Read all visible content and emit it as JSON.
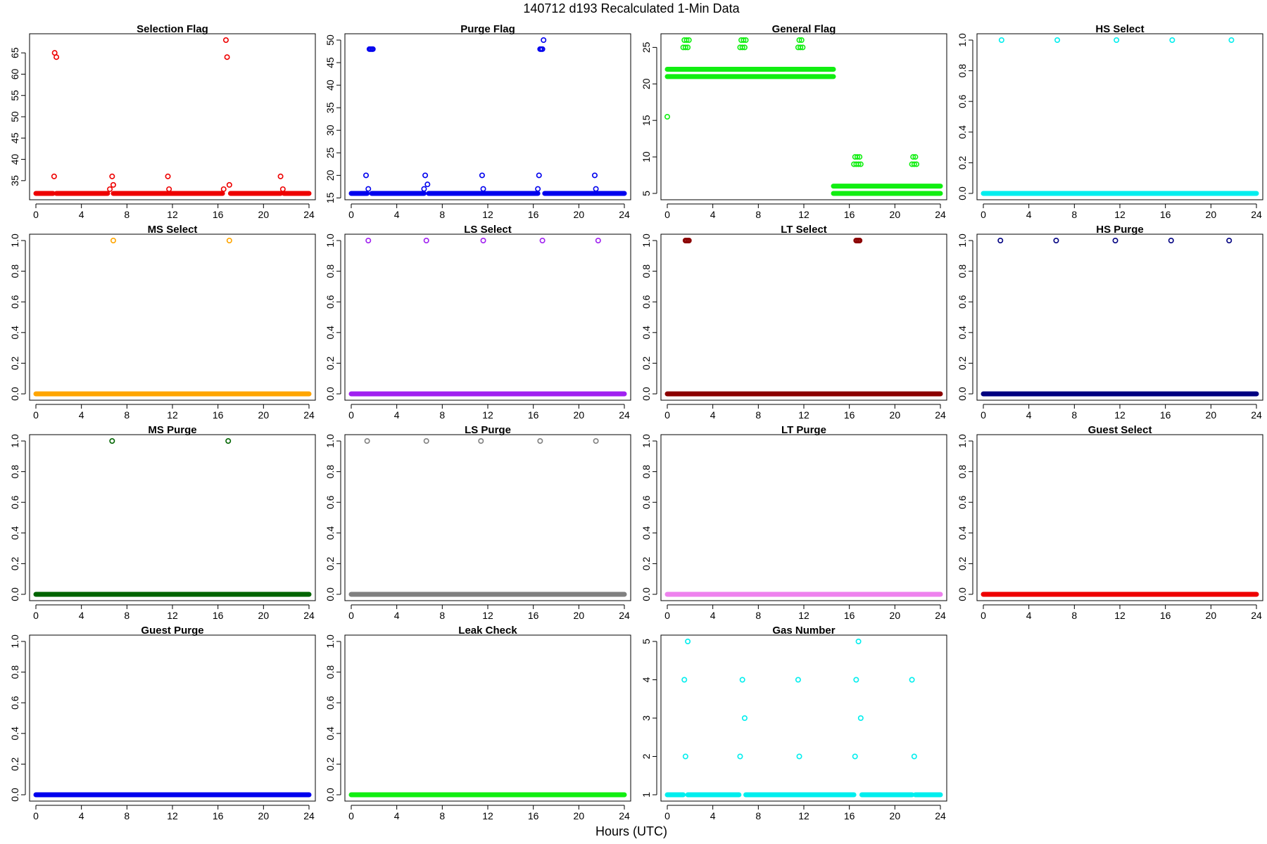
{
  "figure": {
    "title": "140712   d193   Recalculated 1-Min Data",
    "xlabel": "Hours (UTC)"
  },
  "chart_data": [
    {
      "type": "scatter",
      "title": "Selection Flag",
      "color": "#ee0000",
      "xlim": [
        0,
        24
      ],
      "xticks": [
        0,
        4,
        8,
        12,
        16,
        20,
        24
      ],
      "ylim": [
        32,
        68
      ],
      "yticks": [
        35,
        40,
        45,
        50,
        55,
        60,
        65
      ],
      "baseline": {
        "y": 32,
        "segments": [
          [
            0,
            1.5
          ],
          [
            1.8,
            6.3
          ],
          [
            6.8,
            16.4
          ],
          [
            17.1,
            21.5
          ],
          [
            21.8,
            24
          ]
        ]
      },
      "points": [
        [
          1.6,
          36
        ],
        [
          1.65,
          65
        ],
        [
          1.8,
          64
        ],
        [
          6.5,
          33
        ],
        [
          6.7,
          36
        ],
        [
          6.8,
          34
        ],
        [
          11.6,
          36
        ],
        [
          11.7,
          33
        ],
        [
          16.5,
          33
        ],
        [
          16.7,
          68
        ],
        [
          16.8,
          64
        ],
        [
          17.0,
          34
        ],
        [
          21.5,
          36
        ],
        [
          21.7,
          33
        ]
      ]
    },
    {
      "type": "scatter",
      "title": "Purge Flag",
      "color": "#0000ee",
      "xlim": [
        0,
        24
      ],
      "xticks": [
        0,
        4,
        8,
        12,
        16,
        20,
        24
      ],
      "ylim": [
        16,
        50
      ],
      "yticks": [
        15,
        20,
        25,
        30,
        35,
        40,
        45,
        50
      ],
      "baseline": {
        "y": 16,
        "segments": [
          [
            0,
            1.4
          ],
          [
            1.8,
            6.4
          ],
          [
            6.8,
            16.4
          ],
          [
            17.0,
            24
          ]
        ]
      },
      "points": [
        [
          1.3,
          20
        ],
        [
          1.5,
          17
        ],
        [
          1.6,
          48
        ],
        [
          1.7,
          48
        ],
        [
          1.8,
          48
        ],
        [
          1.9,
          48
        ],
        [
          6.4,
          17
        ],
        [
          6.5,
          20
        ],
        [
          6.7,
          18
        ],
        [
          11.5,
          20
        ],
        [
          11.6,
          17
        ],
        [
          16.4,
          17
        ],
        [
          16.5,
          20
        ],
        [
          16.6,
          48
        ],
        [
          16.7,
          48
        ],
        [
          16.8,
          48
        ],
        [
          16.9,
          50
        ],
        [
          21.4,
          20
        ],
        [
          21.5,
          17
        ]
      ]
    },
    {
      "type": "scatter",
      "title": "General Flag",
      "color": "#11ee11",
      "xlim": [
        0,
        24
      ],
      "xticks": [
        0,
        4,
        8,
        12,
        16,
        20,
        24
      ],
      "ylim": [
        5,
        26
      ],
      "yticks": [
        5,
        10,
        15,
        20,
        25
      ],
      "baseline": {
        "y": 21,
        "segments": [
          [
            0,
            14.6
          ]
        ]
      },
      "extra_lines": [
        {
          "y": 22,
          "segments": [
            [
              0,
              14.6
            ]
          ]
        },
        {
          "y": 5,
          "segments": [
            [
              14.6,
              24
            ]
          ]
        },
        {
          "y": 6,
          "segments": [
            [
              14.6,
              24
            ]
          ]
        }
      ],
      "points": [
        [
          0,
          15.5
        ],
        [
          1.4,
          25
        ],
        [
          1.5,
          26
        ],
        [
          1.6,
          25
        ],
        [
          1.7,
          26
        ],
        [
          1.8,
          25
        ],
        [
          1.9,
          26
        ],
        [
          6.4,
          25
        ],
        [
          6.5,
          26
        ],
        [
          6.6,
          25
        ],
        [
          6.7,
          26
        ],
        [
          6.8,
          25
        ],
        [
          6.9,
          26
        ],
        [
          11.5,
          25
        ],
        [
          11.6,
          26
        ],
        [
          11.7,
          25
        ],
        [
          11.8,
          26
        ],
        [
          11.9,
          25
        ],
        [
          16.4,
          9
        ],
        [
          16.5,
          10
        ],
        [
          16.6,
          9
        ],
        [
          16.7,
          10
        ],
        [
          16.8,
          9
        ],
        [
          16.9,
          10
        ],
        [
          17.0,
          9
        ],
        [
          21.5,
          9
        ],
        [
          21.6,
          10
        ],
        [
          21.7,
          9
        ],
        [
          21.8,
          10
        ],
        [
          21.9,
          9
        ]
      ]
    },
    {
      "type": "scatter",
      "title": "HS Select",
      "color": "#00eeee",
      "xlim": [
        0,
        24
      ],
      "xticks": [
        0,
        4,
        8,
        12,
        16,
        20,
        24
      ],
      "ylim": [
        0,
        1
      ],
      "yticks": [
        0.0,
        0.2,
        0.4,
        0.6,
        0.8,
        1.0
      ],
      "baseline": {
        "y": 0,
        "segments": [
          [
            0,
            24
          ]
        ]
      },
      "points": [
        [
          1.6,
          1
        ],
        [
          6.5,
          1
        ],
        [
          11.7,
          1
        ],
        [
          16.6,
          1
        ],
        [
          21.8,
          1
        ]
      ]
    },
    {
      "type": "scatter",
      "title": "MS Select",
      "color": "#ffa500",
      "xlim": [
        0,
        24
      ],
      "xticks": [
        0,
        4,
        8,
        12,
        16,
        20,
        24
      ],
      "ylim": [
        0,
        1
      ],
      "yticks": [
        0.0,
        0.2,
        0.4,
        0.6,
        0.8,
        1.0
      ],
      "baseline": {
        "y": 0,
        "segments": [
          [
            0,
            24
          ]
        ]
      },
      "points": [
        [
          6.8,
          1
        ],
        [
          17.0,
          1
        ]
      ]
    },
    {
      "type": "scatter",
      "title": "LS Select",
      "color": "#a020f0",
      "xlim": [
        0,
        24
      ],
      "xticks": [
        0,
        4,
        8,
        12,
        16,
        20,
        24
      ],
      "ylim": [
        0,
        1
      ],
      "yticks": [
        0.0,
        0.2,
        0.4,
        0.6,
        0.8,
        1.0
      ],
      "baseline": {
        "y": 0,
        "segments": [
          [
            0,
            24
          ]
        ]
      },
      "points": [
        [
          1.5,
          1
        ],
        [
          6.6,
          1
        ],
        [
          11.6,
          1
        ],
        [
          16.8,
          1
        ],
        [
          21.7,
          1
        ]
      ]
    },
    {
      "type": "scatter",
      "title": "LT Select",
      "color": "#8b0000",
      "xlim": [
        0,
        24
      ],
      "xticks": [
        0,
        4,
        8,
        12,
        16,
        20,
        24
      ],
      "ylim": [
        0,
        1
      ],
      "yticks": [
        0.0,
        0.2,
        0.4,
        0.6,
        0.8,
        1.0
      ],
      "baseline": {
        "y": 0,
        "segments": [
          [
            0,
            24
          ]
        ]
      },
      "points": [
        [
          1.6,
          1
        ],
        [
          1.7,
          1
        ],
        [
          1.8,
          1
        ],
        [
          1.9,
          1
        ],
        [
          16.6,
          1
        ],
        [
          16.7,
          1
        ],
        [
          16.8,
          1
        ],
        [
          16.9,
          1
        ]
      ]
    },
    {
      "type": "scatter",
      "title": "HS Purge",
      "color": "#000080",
      "xlim": [
        0,
        24
      ],
      "xticks": [
        0,
        4,
        8,
        12,
        16,
        20,
        24
      ],
      "ylim": [
        0,
        1
      ],
      "yticks": [
        0.0,
        0.2,
        0.4,
        0.6,
        0.8,
        1.0
      ],
      "baseline": {
        "y": 0,
        "segments": [
          [
            0,
            24
          ]
        ]
      },
      "points": [
        [
          1.5,
          1
        ],
        [
          6.4,
          1
        ],
        [
          11.6,
          1
        ],
        [
          16.5,
          1
        ],
        [
          21.6,
          1
        ]
      ]
    },
    {
      "type": "scatter",
      "title": "MS Purge",
      "color": "#006400",
      "xlim": [
        0,
        24
      ],
      "xticks": [
        0,
        4,
        8,
        12,
        16,
        20,
        24
      ],
      "ylim": [
        0,
        1
      ],
      "yticks": [
        0.0,
        0.2,
        0.4,
        0.6,
        0.8,
        1.0
      ],
      "baseline": {
        "y": 0,
        "segments": [
          [
            0,
            24
          ]
        ]
      },
      "points": [
        [
          6.7,
          1
        ],
        [
          16.9,
          1
        ]
      ]
    },
    {
      "type": "scatter",
      "title": "LS Purge",
      "color": "#808080",
      "xlim": [
        0,
        24
      ],
      "xticks": [
        0,
        4,
        8,
        12,
        16,
        20,
        24
      ],
      "ylim": [
        0,
        1
      ],
      "yticks": [
        0.0,
        0.2,
        0.4,
        0.6,
        0.8,
        1.0
      ],
      "baseline": {
        "y": 0,
        "segments": [
          [
            0,
            24
          ]
        ]
      },
      "points": [
        [
          1.4,
          1
        ],
        [
          6.6,
          1
        ],
        [
          11.4,
          1
        ],
        [
          16.6,
          1
        ],
        [
          21.5,
          1
        ]
      ]
    },
    {
      "type": "scatter",
      "title": "LT Purge",
      "color": "#ee82ee",
      "xlim": [
        0,
        24
      ],
      "xticks": [
        0,
        4,
        8,
        12,
        16,
        20,
        24
      ],
      "ylim": [
        0,
        1
      ],
      "yticks": [
        0.0,
        0.2,
        0.4,
        0.6,
        0.8,
        1.0
      ],
      "baseline": {
        "y": 0,
        "segments": [
          [
            0,
            24
          ]
        ]
      },
      "points": []
    },
    {
      "type": "scatter",
      "title": "Guest Select",
      "color": "#ee0000",
      "xlim": [
        0,
        24
      ],
      "xticks": [
        0,
        4,
        8,
        12,
        16,
        20,
        24
      ],
      "ylim": [
        0,
        1
      ],
      "yticks": [
        0.0,
        0.2,
        0.4,
        0.6,
        0.8,
        1.0
      ],
      "baseline": {
        "y": 0,
        "segments": [
          [
            0,
            24
          ]
        ]
      },
      "points": []
    },
    {
      "type": "scatter",
      "title": "Guest Purge",
      "color": "#0000ee",
      "xlim": [
        0,
        24
      ],
      "xticks": [
        0,
        4,
        8,
        12,
        16,
        20,
        24
      ],
      "ylim": [
        0,
        1
      ],
      "yticks": [
        0.0,
        0.2,
        0.4,
        0.6,
        0.8,
        1.0
      ],
      "baseline": {
        "y": 0,
        "segments": [
          [
            0,
            24
          ]
        ]
      },
      "points": []
    },
    {
      "type": "scatter",
      "title": "Leak Check",
      "color": "#11ee11",
      "xlim": [
        0,
        24
      ],
      "xticks": [
        0,
        4,
        8,
        12,
        16,
        20,
        24
      ],
      "ylim": [
        0,
        1
      ],
      "yticks": [
        0.0,
        0.2,
        0.4,
        0.6,
        0.8,
        1.0
      ],
      "baseline": {
        "y": 0,
        "segments": [
          [
            0,
            24
          ]
        ]
      },
      "points": []
    },
    {
      "type": "scatter",
      "title": "Gas Number",
      "color": "#00eeee",
      "xlim": [
        0,
        24
      ],
      "xticks": [
        0,
        4,
        8,
        12,
        16,
        20,
        24
      ],
      "ylim": [
        1,
        5
      ],
      "yticks": [
        1,
        2,
        3,
        4,
        5
      ],
      "baseline": {
        "y": 1,
        "segments": [
          [
            0,
            1.4
          ],
          [
            1.8,
            6.3
          ],
          [
            6.9,
            16.4
          ],
          [
            17.1,
            21.5
          ],
          [
            21.8,
            24
          ]
        ]
      },
      "points": [
        [
          1.5,
          4
        ],
        [
          1.6,
          2
        ],
        [
          1.8,
          5
        ],
        [
          6.4,
          2
        ],
        [
          6.6,
          4
        ],
        [
          6.8,
          3
        ],
        [
          11.5,
          4
        ],
        [
          11.6,
          2
        ],
        [
          16.5,
          2
        ],
        [
          16.6,
          4
        ],
        [
          16.8,
          5
        ],
        [
          17.0,
          3
        ],
        [
          21.5,
          4
        ],
        [
          21.7,
          2
        ]
      ]
    }
  ]
}
